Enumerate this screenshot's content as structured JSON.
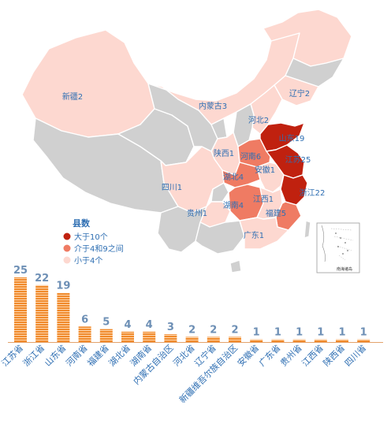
{
  "colors": {
    "high": "#c0210f",
    "mid": "#ef7b63",
    "low": "#fdd8d0",
    "none": "#d0d0d0",
    "bar": "#f08a2c",
    "bar_line": "#ffd8b0",
    "label": "#2f6fb3",
    "value": "#6d8fb5"
  },
  "legend": {
    "title": "县数",
    "items": [
      {
        "label": "大于10个",
        "level": "high"
      },
      {
        "label": "介于4和9之间",
        "level": "mid"
      },
      {
        "label": "小于4个",
        "level": "low"
      }
    ]
  },
  "inset": {
    "label": "南海诸岛"
  },
  "map_regions": [
    {
      "name": "新疆",
      "label": "新疆2",
      "count": 2,
      "level": "low"
    },
    {
      "name": "西藏",
      "label": "",
      "count": 0,
      "level": "none"
    },
    {
      "name": "青海",
      "label": "",
      "count": 0,
      "level": "none"
    },
    {
      "name": "甘肃",
      "label": "",
      "count": 0,
      "level": "none"
    },
    {
      "name": "宁夏",
      "label": "",
      "count": 0,
      "level": "none"
    },
    {
      "name": "内蒙古",
      "label": "内蒙古3",
      "count": 3,
      "level": "low"
    },
    {
      "name": "黑龙江",
      "label": "",
      "count": 0,
      "level": "low"
    },
    {
      "name": "吉林",
      "label": "",
      "count": 0,
      "level": "none"
    },
    {
      "name": "辽宁",
      "label": "辽宁2",
      "count": 2,
      "level": "low"
    },
    {
      "name": "河北",
      "label": "河北2",
      "count": 2,
      "level": "low"
    },
    {
      "name": "山西",
      "label": "",
      "count": 0,
      "level": "none"
    },
    {
      "name": "陕西",
      "label": "陕西1",
      "count": 1,
      "level": "low"
    },
    {
      "name": "河南",
      "label": "河南6",
      "count": 6,
      "level": "mid"
    },
    {
      "name": "山东",
      "label": "山东19",
      "count": 19,
      "level": "high"
    },
    {
      "name": "江苏",
      "label": "江苏25",
      "count": 25,
      "level": "high"
    },
    {
      "name": "安徽",
      "label": "安徽1",
      "count": 1,
      "level": "low"
    },
    {
      "name": "浙江",
      "label": "浙江22",
      "count": 22,
      "level": "high"
    },
    {
      "name": "湖北",
      "label": "湖北4",
      "count": 4,
      "level": "mid"
    },
    {
      "name": "四川",
      "label": "四川1",
      "count": 1,
      "level": "low"
    },
    {
      "name": "重庆",
      "label": "",
      "count": 0,
      "level": "none"
    },
    {
      "name": "湖南",
      "label": "湖南4",
      "count": 4,
      "level": "mid"
    },
    {
      "name": "江西",
      "label": "江西1",
      "count": 1,
      "level": "low"
    },
    {
      "name": "福建",
      "label": "福建5",
      "count": 5,
      "level": "mid"
    },
    {
      "name": "贵州",
      "label": "贵州1",
      "count": 1,
      "level": "low"
    },
    {
      "name": "云南",
      "label": "",
      "count": 0,
      "level": "none"
    },
    {
      "name": "广西",
      "label": "",
      "count": 0,
      "level": "none"
    },
    {
      "name": "广东",
      "label": "广东1",
      "count": 1,
      "level": "low"
    },
    {
      "name": "台湾",
      "label": "",
      "count": 0,
      "level": "none"
    },
    {
      "name": "海南",
      "label": "",
      "count": 0,
      "level": "none"
    }
  ],
  "chart_data": {
    "type": "bar",
    "categories": [
      "江苏省",
      "浙江省",
      "山东省",
      "河南省",
      "福建省",
      "湖北省",
      "湖南省",
      "内蒙古自治区",
      "河北省",
      "辽宁省",
      "新疆维吾尔族自治区",
      "安徽省",
      "广东省",
      "贵州省",
      "江西省",
      "陕西省",
      "四川省"
    ],
    "values": [
      25,
      22,
      19,
      6,
      5,
      4,
      4,
      3,
      2,
      2,
      2,
      1,
      1,
      1,
      1,
      1,
      1
    ],
    "title": "",
    "xlabel": "",
    "ylabel": "",
    "ylim": [
      0,
      25
    ]
  }
}
